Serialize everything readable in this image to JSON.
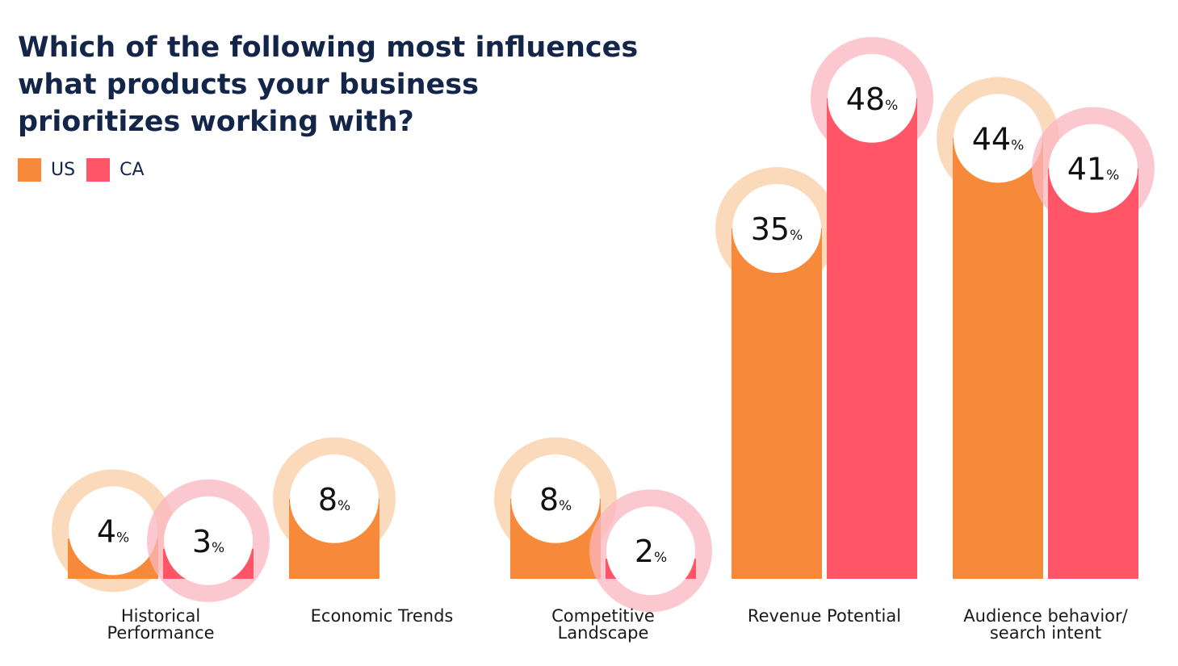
{
  "chart_data": {
    "type": "bar",
    "title": "Which of the following most influences what products your business prioritizes working with?",
    "categories": [
      [
        "Historical",
        "Performance"
      ],
      [
        "Economic Trends"
      ],
      [
        "Competitive",
        "Landscape"
      ],
      [
        "Revenue Potential"
      ],
      [
        "Audience behavior/",
        "search intent"
      ]
    ],
    "series": [
      {
        "name": "US",
        "color": "#f78a3a",
        "halo": "#f9cda6",
        "values": [
          4,
          8,
          8,
          35,
          44
        ]
      },
      {
        "name": "CA",
        "color": "#ff5566",
        "halo": "#fbb6c0",
        "values": [
          3,
          null,
          2,
          48,
          41
        ]
      }
    ],
    "value_suffix": "%",
    "ylim": [
      0,
      55
    ],
    "legend": "top-left",
    "grid": false
  }
}
